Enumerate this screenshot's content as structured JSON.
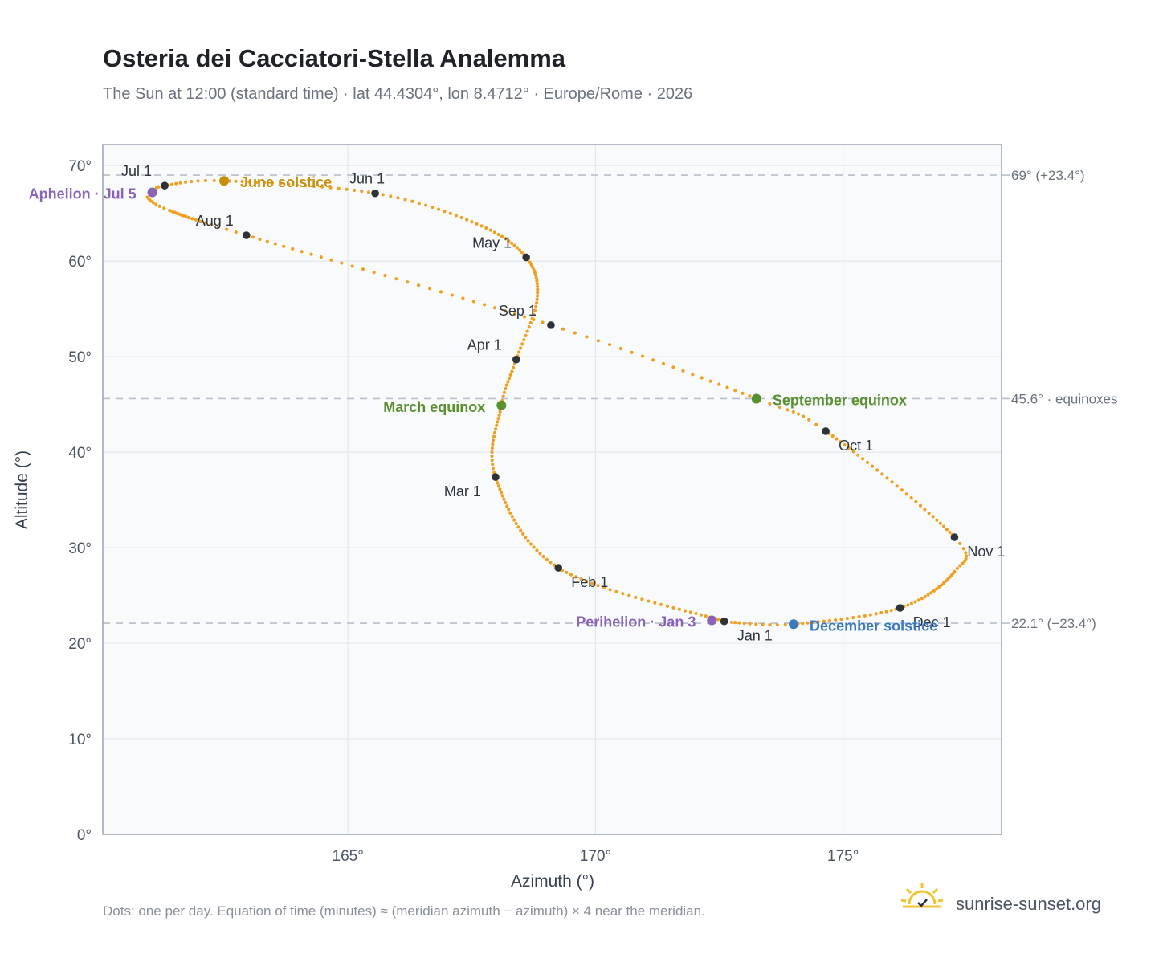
{
  "header": {
    "title": "Osteria dei Cacciatori-Stella Analemma",
    "subtitle": "The Sun at 12:00 (standard time) · lat 44.4304°, lon 8.4712° · Europe/Rome · 2026"
  },
  "footer": {
    "note": "Dots: one per day. Equation of time (minutes) ≈ (meridian azimuth − azimuth) × 4 near the meridian.",
    "brand": "sunrise-sunset.org"
  },
  "colors": {
    "curve": "#f0a020",
    "marker": "#2d3239",
    "june": "#c8900a",
    "equinox": "#5a8f2e",
    "december": "#3a78c0",
    "apsis": "#8a63b8",
    "grid": "#e3e8ee",
    "plot_bg": "#f8fafc",
    "ref_line": "#b8c0cc"
  },
  "chart_data": {
    "type": "scatter",
    "xlabel": "Azimuth (°)",
    "ylabel": "Altitude (°)",
    "xlim": [
      160.05,
      178.2
    ],
    "ylim": [
      0,
      72.2
    ],
    "xticks": [
      165,
      170,
      175
    ],
    "xtick_labels": [
      "165°",
      "170°",
      "175°"
    ],
    "yticks": [
      0,
      10,
      20,
      30,
      40,
      50,
      60,
      70
    ],
    "ytick_labels": [
      "0°",
      "10°",
      "20°",
      "30°",
      "40°",
      "50°",
      "60°",
      "70°"
    ],
    "grid": true,
    "reference_lines": [
      {
        "y": 69.0,
        "label": "69° (+23.4°)"
      },
      {
        "y": 45.6,
        "label": "45.6° · equinoxes"
      },
      {
        "y": 22.1,
        "label": "22.1° (−23.4°)"
      }
    ],
    "series": [
      {
        "path": [
          {
            "day": 1,
            "x": 172.6,
            "y": 22.3
          },
          {
            "day": 32,
            "x": 169.25,
            "y": 27.9
          },
          {
            "day": 60,
            "x": 167.98,
            "y": 37.4
          },
          {
            "day": 79,
            "x": 168.1,
            "y": 44.9
          },
          {
            "day": 91,
            "x": 168.4,
            "y": 49.7
          },
          {
            "day": 106,
            "x": 168.82,
            "y": 56.0
          },
          {
            "day": 121,
            "x": 168.6,
            "y": 60.4
          },
          {
            "day": 136,
            "x": 167.6,
            "y": 63.9
          },
          {
            "day": 152,
            "x": 165.55,
            "y": 67.1
          },
          {
            "day": 172,
            "x": 162.5,
            "y": 68.4
          },
          {
            "day": 182,
            "x": 161.3,
            "y": 67.9
          },
          {
            "day": 186,
            "x": 161.1,
            "y": 67.4
          },
          {
            "day": 188,
            "x": 160.95,
            "y": 66.7
          },
          {
            "day": 196,
            "x": 161.4,
            "y": 65.3
          },
          {
            "day": 213,
            "x": 162.95,
            "y": 62.7
          },
          {
            "day": 244,
            "x": 169.1,
            "y": 53.3
          },
          {
            "day": 265,
            "x": 173.25,
            "y": 45.6
          },
          {
            "day": 274,
            "x": 174.65,
            "y": 42.2
          },
          {
            "day": 305,
            "x": 177.25,
            "y": 31.1
          },
          {
            "day": 315,
            "x": 177.25,
            "y": 27.5
          },
          {
            "day": 335,
            "x": 176.15,
            "y": 23.7
          },
          {
            "day": 355,
            "x": 174.0,
            "y": 22.0
          },
          {
            "day": 365,
            "x": 172.75,
            "y": 22.2
          }
        ]
      }
    ],
    "month_markers": [
      {
        "label": "Jan 1",
        "x": 172.6,
        "y": 22.3,
        "anchor": "start",
        "dx": 16,
        "dy": 24
      },
      {
        "label": "Feb 1",
        "x": 169.25,
        "y": 27.9,
        "anchor": "start",
        "dx": 16,
        "dy": 24
      },
      {
        "label": "Mar 1",
        "x": 167.98,
        "y": 37.4,
        "anchor": "end",
        "dx": -18,
        "dy": 24
      },
      {
        "label": "Apr 1",
        "x": 168.4,
        "y": 49.7,
        "anchor": "end",
        "dx": -18,
        "dy": -12
      },
      {
        "label": "May 1",
        "x": 168.6,
        "y": 60.4,
        "anchor": "end",
        "dx": -18,
        "dy": -12
      },
      {
        "label": "Jun 1",
        "x": 165.55,
        "y": 67.1,
        "anchor": "end",
        "dx": 12,
        "dy": -12
      },
      {
        "label": "Jul 1",
        "x": 161.3,
        "y": 67.9,
        "anchor": "end",
        "dx": -16,
        "dy": -12
      },
      {
        "label": "Aug 1",
        "x": 162.95,
        "y": 62.7,
        "anchor": "end",
        "dx": -16,
        "dy": -12
      },
      {
        "label": "Sep 1",
        "x": 169.1,
        "y": 53.3,
        "anchor": "end",
        "dx": -18,
        "dy": -12
      },
      {
        "label": "Oct 1",
        "x": 174.65,
        "y": 42.2,
        "anchor": "start",
        "dx": 16,
        "dy": 24
      },
      {
        "label": "Nov 1",
        "x": 177.25,
        "y": 31.1,
        "anchor": "start",
        "dx": 16,
        "dy": 24
      },
      {
        "label": "Dec 1",
        "x": 176.15,
        "y": 23.7,
        "anchor": "start",
        "dx": 16,
        "dy": 24
      }
    ],
    "events": [
      {
        "label": "June solstice",
        "x": 162.5,
        "y": 68.4,
        "color_key": "june",
        "anchor": "start",
        "dx": 20,
        "dy": 8
      },
      {
        "label": "March equinox",
        "x": 168.1,
        "y": 44.9,
        "color_key": "equinox",
        "anchor": "end",
        "dx": -20,
        "dy": 8
      },
      {
        "label": "September equinox",
        "x": 173.25,
        "y": 45.6,
        "color_key": "equinox",
        "anchor": "start",
        "dx": 20,
        "dy": 8
      },
      {
        "label": "December solstice",
        "x": 174.0,
        "y": 22.0,
        "color_key": "december",
        "anchor": "start",
        "dx": 20,
        "dy": 8
      },
      {
        "label": "Aphelion · Jul 5",
        "x": 161.05,
        "y": 67.2,
        "color_key": "apsis",
        "anchor": "end",
        "dx": -20,
        "dy": 8
      },
      {
        "label": "Perihelion · Jan 3",
        "x": 172.35,
        "y": 22.4,
        "color_key": "apsis",
        "anchor": "end",
        "dx": -20,
        "dy": 8
      }
    ]
  }
}
